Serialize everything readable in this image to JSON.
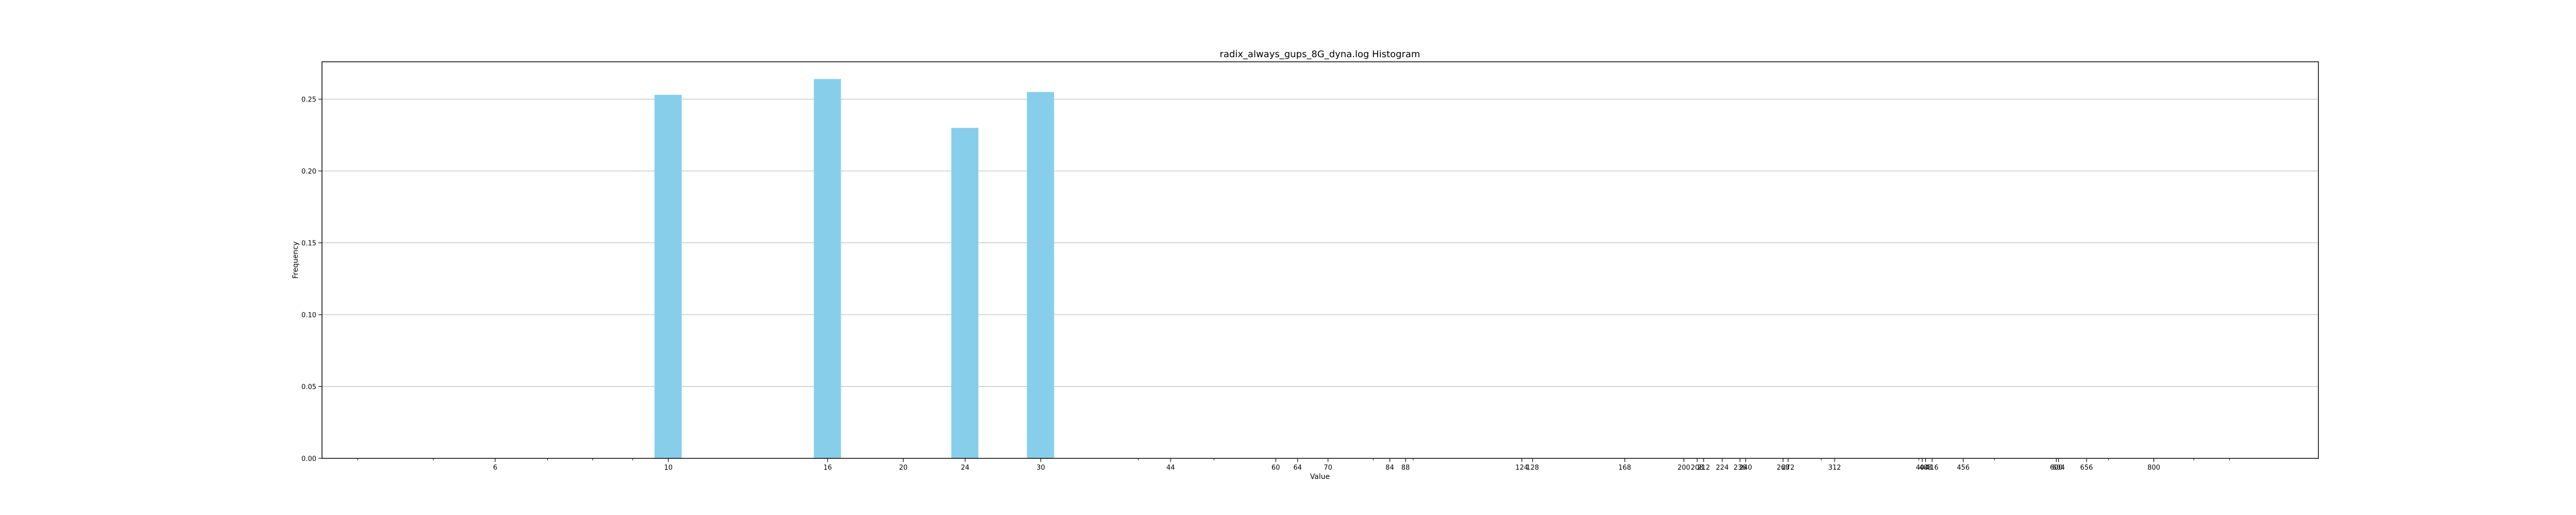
{
  "chart_data": {
    "type": "bar",
    "title": "radix_always_gups_8G_dyna.log Histogram",
    "xlabel": "Value",
    "ylabel": "Frequency",
    "xscale": "log",
    "xlim": [
      3.6,
      1300
    ],
    "ylim": [
      0,
      0.276
    ],
    "grid": "y",
    "bar_color": "#87ceeb",
    "x_ticks": [
      6,
      10,
      16,
      20,
      24,
      30,
      44,
      60,
      64,
      70,
      84,
      88,
      124,
      128,
      168,
      200,
      208,
      212,
      224,
      236,
      240,
      268,
      272,
      312,
      404,
      408,
      416,
      456,
      600,
      604,
      656,
      800
    ],
    "y_ticks": [
      0.0,
      0.05,
      0.1,
      0.15,
      0.2,
      0.25
    ],
    "y_tick_labels": [
      "0.00",
      "0.05",
      "0.10",
      "0.15",
      "0.20",
      "0.25"
    ],
    "minor_x_ticks": [
      4,
      5,
      7,
      8,
      9,
      40,
      50,
      80,
      90,
      200,
      300,
      400,
      500,
      700,
      900,
      1000
    ],
    "bars": [
      {
        "x": 10,
        "value": 0.253
      },
      {
        "x": 16,
        "value": 0.264
      },
      {
        "x": 24,
        "value": 0.23
      },
      {
        "x": 30,
        "value": 0.255
      },
      {
        "x": 6,
        "value": 0.0
      },
      {
        "x": 20,
        "value": 0.0
      },
      {
        "x": 44,
        "value": 0.0
      },
      {
        "x": 60,
        "value": 0.0
      },
      {
        "x": 64,
        "value": 0.0
      },
      {
        "x": 70,
        "value": 0.0
      },
      {
        "x": 84,
        "value": 0.0
      },
      {
        "x": 88,
        "value": 0.0
      },
      {
        "x": 124,
        "value": 0.0
      },
      {
        "x": 128,
        "value": 0.0
      },
      {
        "x": 168,
        "value": 0.0
      },
      {
        "x": 200,
        "value": 0.0
      },
      {
        "x": 208,
        "value": 0.0
      },
      {
        "x": 212,
        "value": 0.0
      },
      {
        "x": 224,
        "value": 0.0
      },
      {
        "x": 236,
        "value": 0.0
      },
      {
        "x": 240,
        "value": 0.0
      },
      {
        "x": 268,
        "value": 0.0
      },
      {
        "x": 272,
        "value": 0.0
      },
      {
        "x": 312,
        "value": 0.0
      },
      {
        "x": 404,
        "value": 0.0
      },
      {
        "x": 408,
        "value": 0.0
      },
      {
        "x": 416,
        "value": 0.0
      },
      {
        "x": 456,
        "value": 0.0
      },
      {
        "x": 600,
        "value": 0.0
      },
      {
        "x": 604,
        "value": 0.0
      },
      {
        "x": 656,
        "value": 0.0
      },
      {
        "x": 800,
        "value": 0.0
      }
    ]
  }
}
